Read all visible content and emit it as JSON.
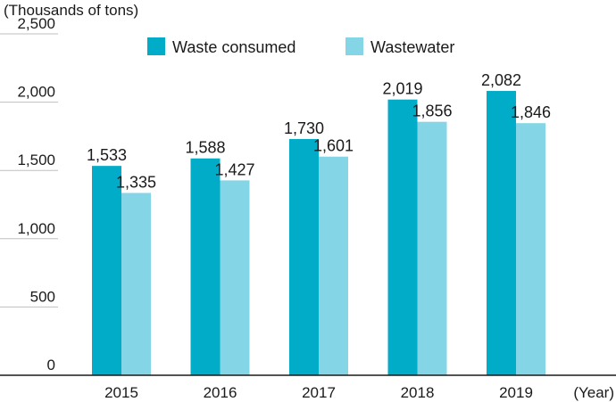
{
  "chart_data": {
    "type": "bar",
    "ylabel": "(Thousands of tons)",
    "xlabel": "(Year)",
    "categories": [
      "2015",
      "2016",
      "2017",
      "2018",
      "2019"
    ],
    "yticks": [
      "0",
      "500",
      "1,000",
      "1,500",
      "2,000",
      "2,500"
    ],
    "ylim": [
      0,
      2500
    ],
    "grid": true,
    "legend_position": "top",
    "series": [
      {
        "name": "Waste consumed",
        "color": "#00acc8",
        "values": [
          1533,
          1588,
          1730,
          2019,
          2082
        ],
        "labels": [
          "1,533",
          "1,588",
          "1,730",
          "2,019",
          "2,082"
        ]
      },
      {
        "name": "Wastewater",
        "color": "#84d5e6",
        "values": [
          1335,
          1427,
          1601,
          1856,
          1846
        ],
        "labels": [
          "1,335",
          "1,427",
          "1,601",
          "1,856",
          "1,846"
        ]
      }
    ]
  }
}
